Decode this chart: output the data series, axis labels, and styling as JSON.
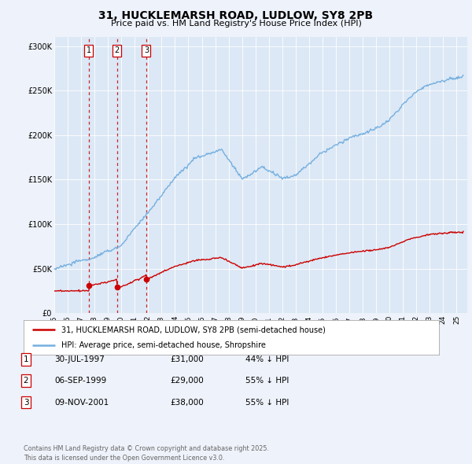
{
  "title": "31, HUCKLEMARSH ROAD, LUDLOW, SY8 2PB",
  "subtitle": "Price paid vs. HM Land Registry's House Price Index (HPI)",
  "background_color": "#eef2fa",
  "plot_bg_color": "#dce8f5",
  "purchases": [
    {
      "date_num": 1997.57,
      "price": 31000,
      "label": "1"
    },
    {
      "date_num": 1999.68,
      "price": 29000,
      "label": "2"
    },
    {
      "date_num": 2001.86,
      "price": 38000,
      "label": "3"
    }
  ],
  "purchase_color": "#cc0000",
  "hpi_color": "#74afe0",
  "vline_color": "#cc0000",
  "legend_label_red": "31, HUCKLEMARSH ROAD, LUDLOW, SY8 2PB (semi-detached house)",
  "legend_label_blue": "HPI: Average price, semi-detached house, Shropshire",
  "table_data": [
    {
      "num": "1",
      "date": "30-JUL-1997",
      "price": "£31,000",
      "hpi": "44% ↓ HPI"
    },
    {
      "num": "2",
      "date": "06-SEP-1999",
      "price": "£29,000",
      "hpi": "55% ↓ HPI"
    },
    {
      "num": "3",
      "date": "09-NOV-2001",
      "price": "£38,000",
      "hpi": "55% ↓ HPI"
    }
  ],
  "footer": "Contains HM Land Registry data © Crown copyright and database right 2025.\nThis data is licensed under the Open Government Licence v3.0.",
  "ylim": [
    0,
    310000
  ],
  "yticks": [
    0,
    50000,
    100000,
    150000,
    200000,
    250000,
    300000
  ]
}
